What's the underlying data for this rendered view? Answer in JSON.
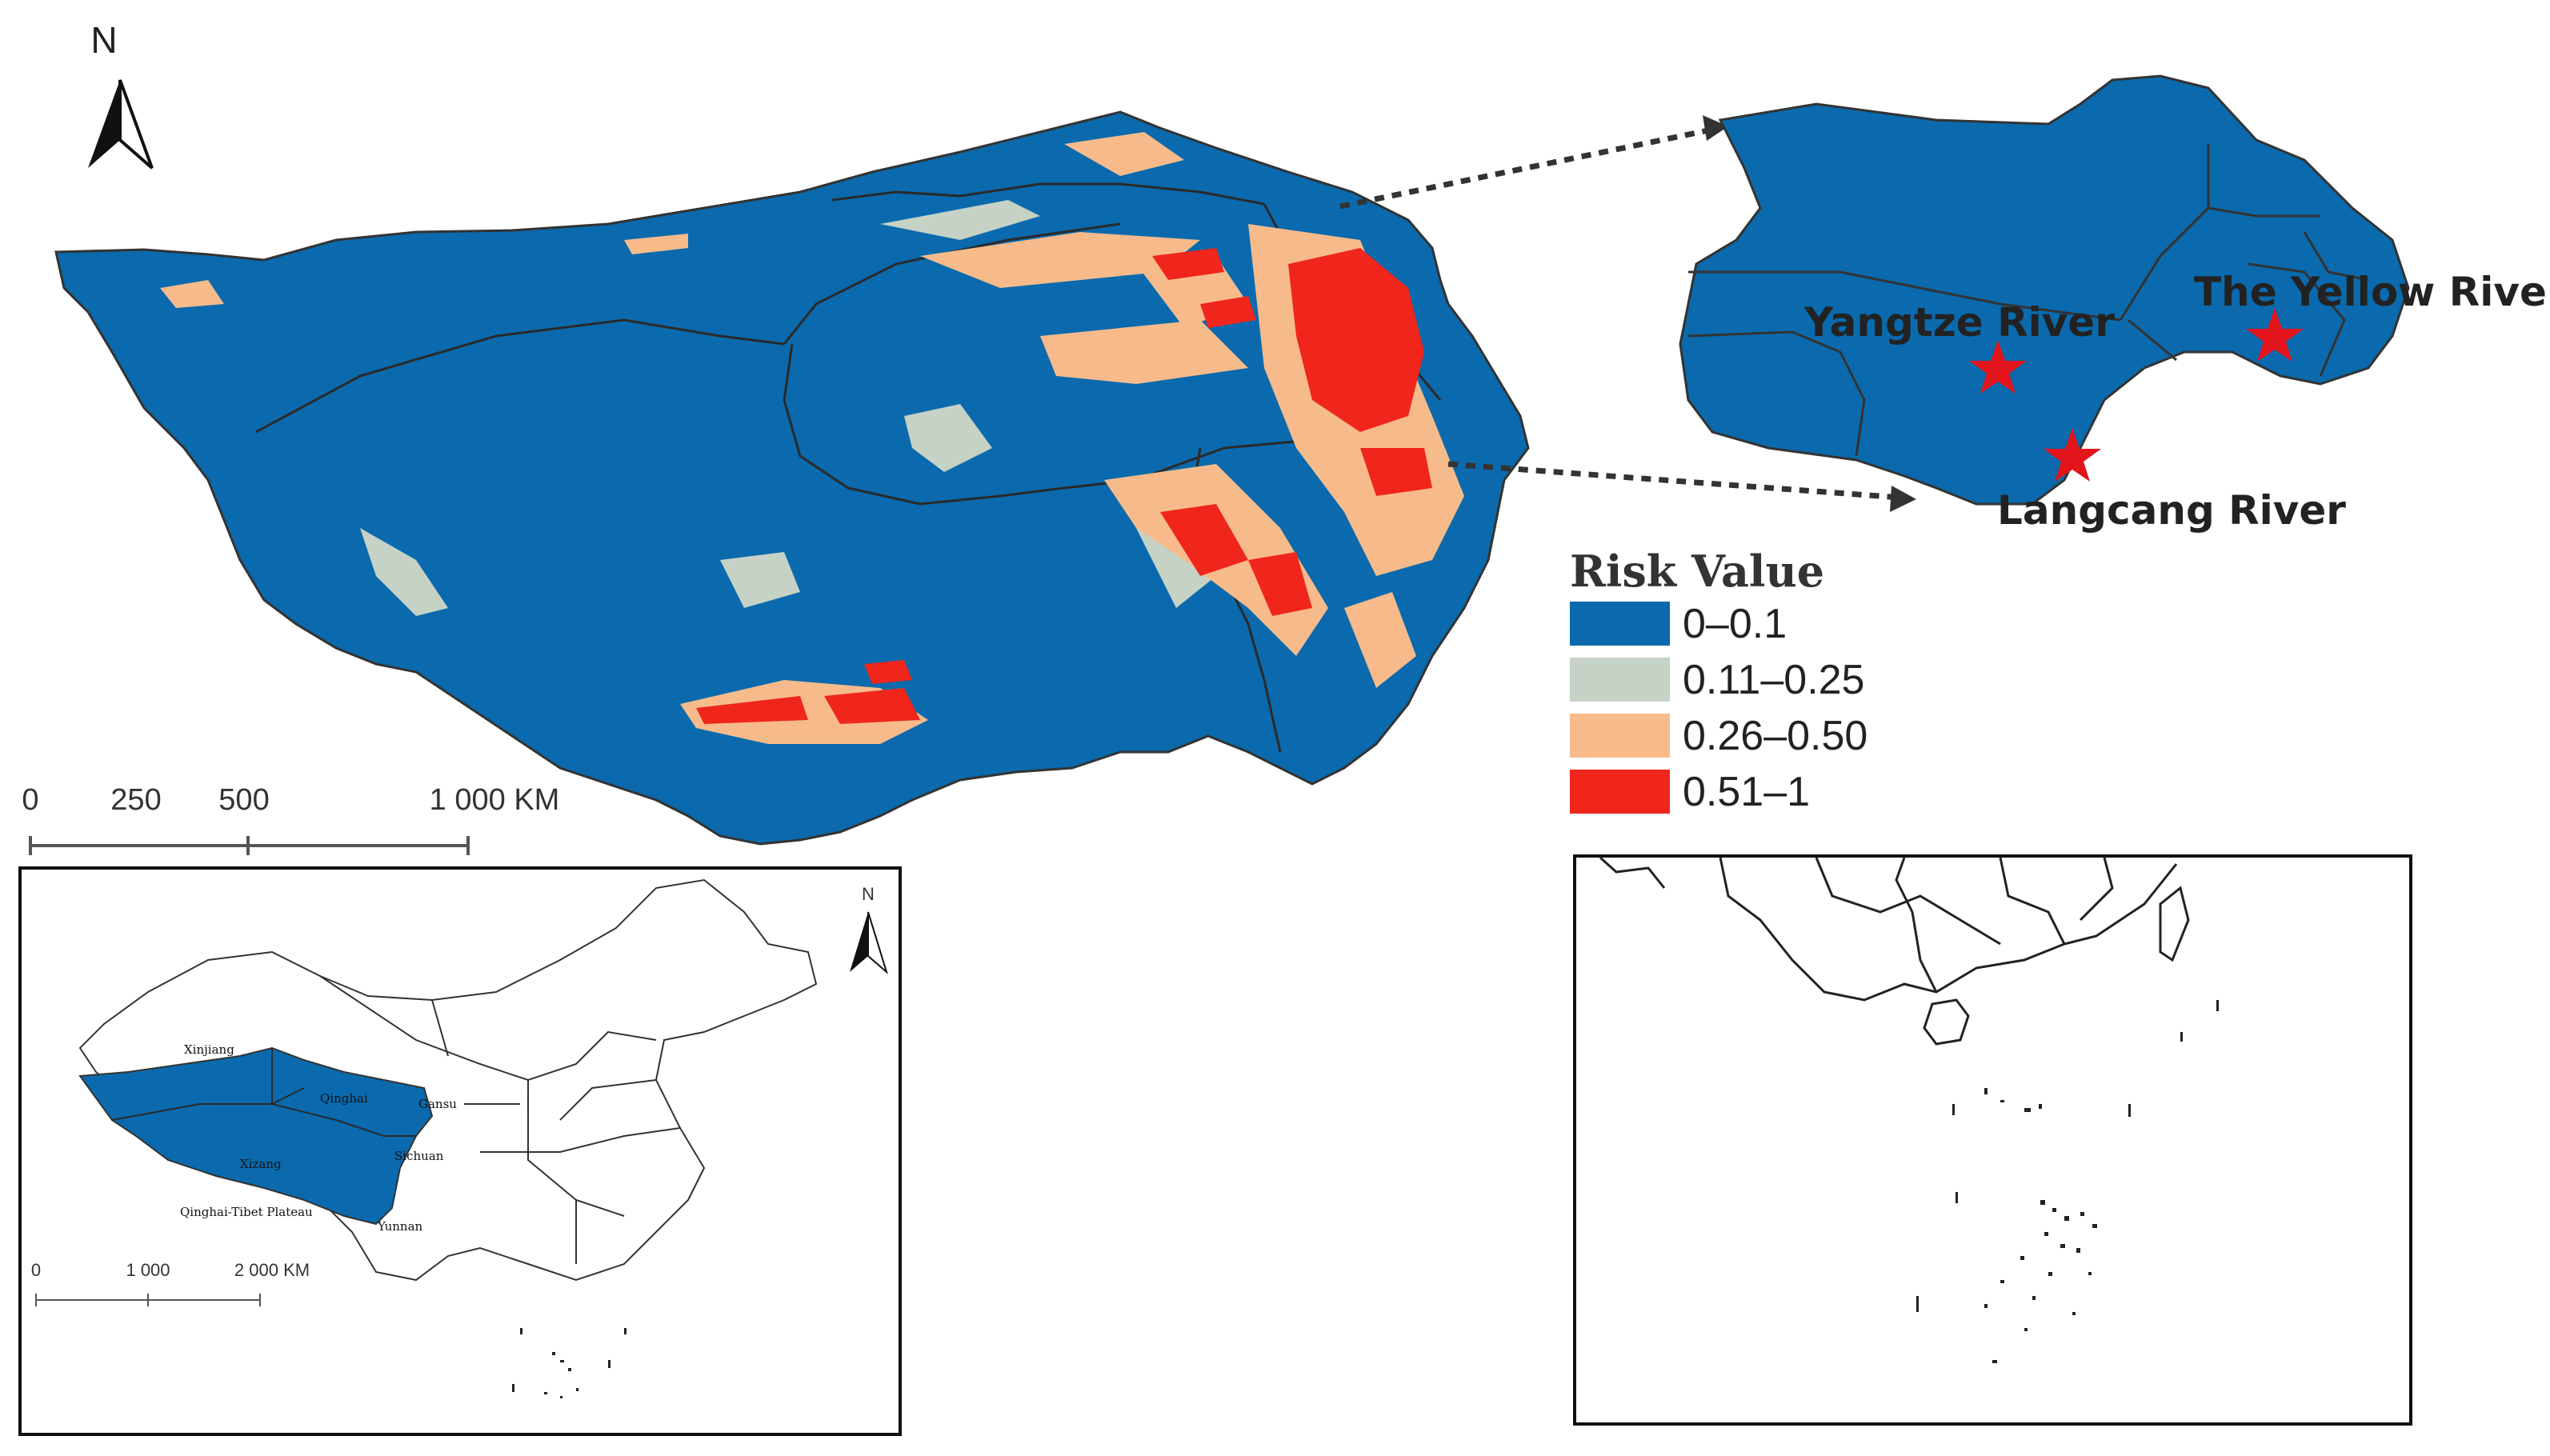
{
  "north_label": "N",
  "main_scale": {
    "ticks": [
      "0",
      "250",
      "500",
      "1 000 KM"
    ]
  },
  "legend": {
    "title": "Risk Value",
    "items": [
      {
        "label": "0–0.1",
        "color": "#0a6aad"
      },
      {
        "label": "0.11–0.25",
        "color": "#c6d2c5"
      },
      {
        "label": "0.26–0.50",
        "color": "#f7bb8b"
      },
      {
        "label": "0.51–1",
        "color": "#f0261c"
      }
    ]
  },
  "rivers": [
    {
      "label": "Yangtze River"
    },
    {
      "label": "The Yellow River"
    },
    {
      "label": "Langcang River"
    }
  ],
  "inset_china": {
    "north_label": "N",
    "provinces": [
      "Xinjiang",
      "Qinghai",
      "Gansu",
      "Xizang",
      "Sichuan",
      "Qinghai-Tibet Plateau",
      "Yunnan"
    ],
    "scale_ticks": [
      "0",
      "1 000",
      "2 000 KM"
    ]
  },
  "colors": {
    "plateau_fill": "#0a6aad",
    "boundary_stroke": "#333333",
    "star": "#e3141b"
  }
}
